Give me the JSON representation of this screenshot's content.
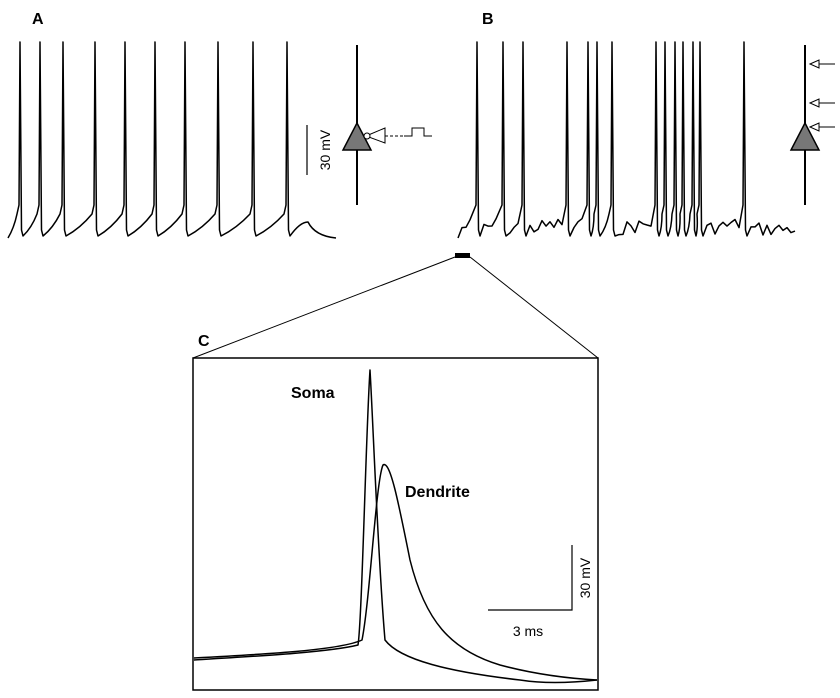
{
  "panels": {
    "a": {
      "label": "A",
      "scale_label": "30 mV"
    },
    "b": {
      "label": "B"
    },
    "c": {
      "label": "C",
      "trace_labels": [
        "Soma",
        "Dendrite"
      ],
      "scale_v_label": "30 mV",
      "scale_t_label": "3 ms"
    }
  }
}
